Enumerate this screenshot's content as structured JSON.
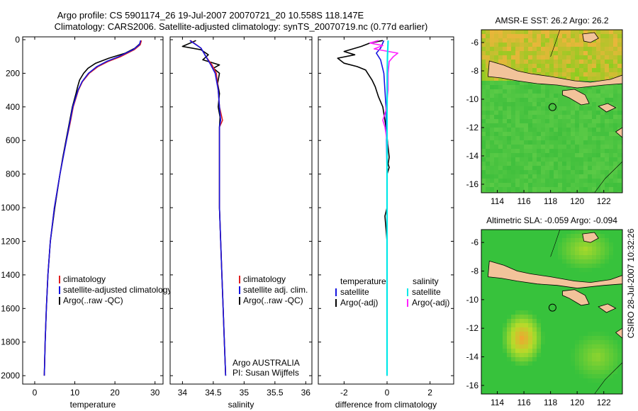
{
  "header": {
    "line1": "Argo profile: CS 5901174_26 19-Jul-2007 20070721_20 10.558S 118.147E",
    "line2": "Climatology: CARS2006. Satellite-adjusted climatology: synTS_20070719.nc (0.77d earlier)"
  },
  "side_label": "CSIRO 28-Jul-2007 10:32:26",
  "colors": {
    "clim": "#e02020",
    "sat": "#1515e0",
    "argo": "#000000",
    "cyan": "#00e8e8",
    "magenta": "#ff22ff"
  },
  "chart_data": [
    {
      "type": "line",
      "xlabel": "temperature",
      "ylim": [
        2050,
        0
      ],
      "xlim": [
        -3,
        32
      ],
      "xticks": [
        0,
        10,
        20,
        30
      ],
      "yticks": [
        0,
        200,
        400,
        600,
        800,
        1000,
        1200,
        1400,
        1600,
        1800,
        2000
      ],
      "legend": [
        "climatology",
        "satellite-adjusted climatology",
        "Argo(..raw -QC)"
      ],
      "series": [
        {
          "name": "climatology",
          "color": "#e02020",
          "depth": [
            5,
            30,
            60,
            100,
            130,
            160,
            200,
            250,
            300,
            400,
            500,
            600,
            700,
            800,
            1000,
            1200,
            1400,
            1600,
            1800,
            2000
          ],
          "values": [
            26.6,
            26.3,
            24.8,
            21.5,
            18.3,
            15.8,
            13.6,
            11.9,
            10.9,
            9.6,
            8.8,
            7.9,
            7.1,
            6.3,
            4.9,
            3.9,
            3.3,
            2.9,
            2.6,
            2.4
          ]
        },
        {
          "name": "satellite-adjusted climatology",
          "color": "#1515e0",
          "depth": [
            5,
            30,
            60,
            100,
            130,
            160,
            200,
            250,
            300,
            400,
            500,
            600,
            700,
            800,
            1000,
            1200,
            1400,
            1600,
            1800,
            2000
          ],
          "values": [
            26.4,
            26.1,
            24.5,
            21.0,
            17.9,
            15.5,
            13.4,
            11.8,
            10.8,
            9.5,
            8.7,
            7.9,
            7.1,
            6.3,
            4.9,
            3.9,
            3.3,
            2.9,
            2.6,
            2.4
          ]
        },
        {
          "name": "Argo(..raw -QC)",
          "color": "#000000",
          "depth": [
            5,
            25,
            50,
            80,
            110,
            140,
            170,
            200,
            240,
            280,
            320,
            400,
            500,
            600,
            700,
            800,
            1000,
            1200,
            1400,
            1600,
            1800,
            2000
          ],
          "values": [
            26.5,
            26.2,
            25.0,
            22.6,
            18.5,
            15.2,
            13.3,
            12.2,
            11.2,
            10.7,
            10.3,
            9.4,
            8.6,
            7.8,
            7.0,
            6.3,
            5.0,
            3.9,
            3.3,
            2.9,
            2.6,
            2.4
          ]
        }
      ]
    },
    {
      "type": "line",
      "xlabel": "salinity",
      "ylim": [
        2050,
        0
      ],
      "xlim": [
        33.8,
        36.1
      ],
      "xticks": [
        34,
        34.5,
        35,
        35.5,
        36
      ],
      "legend": [
        "climatology",
        "satellite adj. clim.",
        "Argo(..raw -QC)"
      ],
      "annotations": [
        "Argo AUSTRALIA",
        "PI: Susan Wijffels"
      ],
      "series": [
        {
          "name": "climatology",
          "color": "#e02020",
          "depth": [
            5,
            50,
            100,
            150,
            200,
            300,
            400,
            480,
            520,
            600,
            800,
            1000,
            1200,
            1400,
            1600,
            1800,
            2000
          ],
          "values": [
            34.13,
            34.3,
            34.38,
            34.48,
            34.55,
            34.58,
            34.6,
            34.65,
            34.6,
            34.6,
            34.6,
            34.6,
            34.62,
            34.64,
            34.66,
            34.68,
            34.7
          ]
        },
        {
          "name": "satellite adj. clim.",
          "color": "#1515e0",
          "depth": [
            5,
            50,
            100,
            150,
            200,
            300,
            400,
            480,
            520,
            600,
            800,
            1000,
            1200,
            1400,
            1600,
            1800,
            2000
          ],
          "values": [
            34.12,
            34.3,
            34.38,
            34.46,
            34.53,
            34.58,
            34.6,
            34.62,
            34.6,
            34.6,
            34.6,
            34.6,
            34.62,
            34.64,
            34.66,
            34.68,
            34.7
          ]
        },
        {
          "name": "Argo(..raw -QC)",
          "color": "#000000",
          "depth": [
            5,
            40,
            60,
            90,
            120,
            150,
            170,
            200,
            260,
            320,
            400,
            460,
            520,
            600,
            800,
            1000,
            1200,
            1400,
            1600,
            1800,
            2000
          ],
          "values": [
            34.22,
            34.0,
            34.3,
            34.42,
            34.33,
            34.6,
            34.5,
            34.6,
            34.57,
            34.6,
            34.58,
            34.61,
            34.6,
            34.6,
            34.6,
            34.6,
            34.62,
            34.64,
            34.66,
            34.68,
            34.7
          ]
        }
      ]
    },
    {
      "type": "line",
      "xlabel": "difference from climatology",
      "ylim": [
        2050,
        0
      ],
      "xlim": [
        -3.2,
        3.1
      ],
      "xticks": [
        -2,
        0,
        2
      ],
      "legend_left_title": "temperature",
      "legend_right_title": "salinity",
      "legend_left": [
        "satellite",
        "Argo(-adj)"
      ],
      "legend_right": [
        "satellite",
        "Argo(-adj)"
      ],
      "series": [
        {
          "name": "temperature satellite",
          "color": "#1515e0",
          "depth": [
            5,
            50,
            80,
            120,
            200,
            400,
            800,
            1200,
            1600,
            2000
          ],
          "values": [
            -0.15,
            -0.3,
            -0.5,
            -0.3,
            -0.15,
            -0.05,
            0,
            0,
            0,
            0
          ]
        },
        {
          "name": "temperature Argo(-adj)",
          "color": "#000000",
          "depth": [
            5,
            20,
            40,
            70,
            90,
            110,
            140,
            160,
            180,
            200,
            240,
            280,
            340,
            400,
            520,
            700,
            740,
            760,
            800,
            1000,
            1050,
            1200,
            1600,
            2000
          ],
          "values": [
            -0.2,
            -0.8,
            -1.2,
            -2.0,
            -1.5,
            -2.3,
            -2.0,
            -1.4,
            -1.0,
            -0.9,
            -0.7,
            -0.55,
            -0.4,
            -0.2,
            -0.05,
            0.1,
            0.05,
            0.1,
            0,
            0,
            -0.1,
            0,
            0,
            0
          ]
        },
        {
          "name": "salinity satellite",
          "color": "#00e8e8",
          "depth": [
            5,
            100,
            200,
            400,
            800,
            1200,
            2000
          ],
          "values": [
            0.05,
            0.02,
            0.01,
            0,
            0,
            0,
            0
          ]
        },
        {
          "name": "salinity Argo(-adj)",
          "color": "#ff22ff",
          "depth": [
            5,
            20,
            35,
            55,
            80,
            100,
            130,
            200,
            300,
            420,
            480,
            520,
            560,
            620,
            700
          ],
          "values": [
            -0.4,
            -0.8,
            -0.2,
            -0.6,
            0.5,
            0.3,
            0.1,
            0.05,
            0.05,
            -0.05,
            -0.2,
            -0.1,
            -0.05,
            0.02,
            0
          ]
        }
      ]
    }
  ],
  "maps": [
    {
      "title": "AMSR-E SST: 26.2 Argo: 26.2",
      "xlim": [
        112.8,
        123.4
      ],
      "ylim": [
        -16.6,
        -5.1
      ],
      "xticks": [
        114,
        116,
        118,
        120,
        122
      ],
      "yticks": [
        -6,
        -8,
        -10,
        -12,
        -14,
        -16
      ],
      "argo_lon": 118.147,
      "argo_lat": -10.558
    },
    {
      "title": "Altimetric SLA: -0.059 Argo: -0.094",
      "xlim": [
        112.8,
        123.4
      ],
      "ylim": [
        -16.6,
        -5.1
      ],
      "xticks": [
        114,
        116,
        118,
        120,
        122
      ],
      "yticks": [
        -6,
        -8,
        -10,
        -12,
        -14,
        -16
      ],
      "argo_lon": 118.147,
      "argo_lat": -10.558
    }
  ]
}
